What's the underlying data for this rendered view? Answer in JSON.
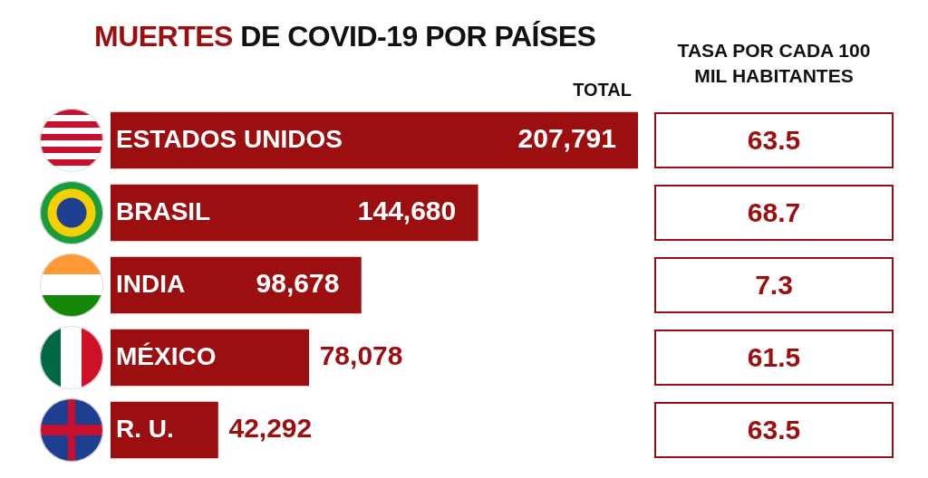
{
  "chart_data": [
    {
      "type": "bar",
      "orientation": "horizontal",
      "title": "MUERTES DE COVID-19 POR PAÍSES",
      "xlabel": "TOTAL",
      "categories": [
        "ESTADOS UNIDOS",
        "BRASIL",
        "INDIA",
        "MÉXICO",
        "R. U."
      ],
      "values": [
        207791,
        144680,
        98678,
        78078,
        42292
      ],
      "value_labels": [
        "207,791",
        "144,680",
        "98,678",
        "78,078",
        "42,292"
      ],
      "color": "#9b0f10"
    },
    {
      "type": "other",
      "title": "TASA POR CADA 100 MIL HABITANTES",
      "categories": [
        null,
        null,
        null,
        null,
        null
      ],
      "values": [
        63.5,
        68.7,
        7.3,
        61.5,
        63.5
      ],
      "color": "#9b0f10",
      "data_labels": true
    }
  ]
}
